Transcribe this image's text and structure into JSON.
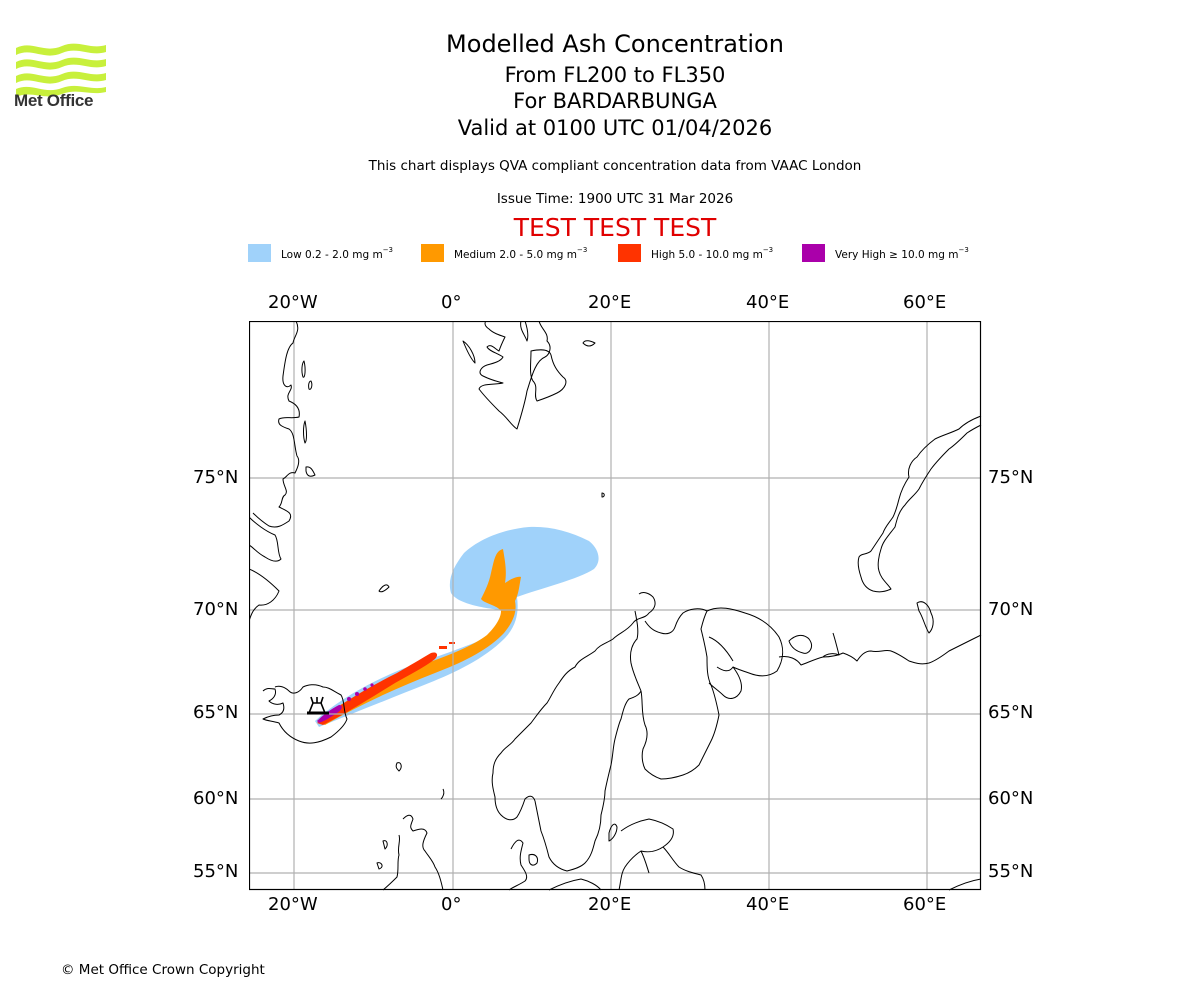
{
  "header": {
    "logo_name": "Met Office",
    "title": "Modelled Ash Concentration",
    "flight_levels": "From FL200 to FL350",
    "volcano": "For BARDARBUNGA",
    "valid_time": "Valid at 0100 UTC 01/04/2026",
    "description": "This chart displays QVA compliant concentration data from VAAC London",
    "issue_time": "Issue Time: 1900 UTC 31 Mar 2026",
    "test_banner": "TEST TEST TEST"
  },
  "legend": [
    {
      "label": "Low 0.2 - 2.0 mg m",
      "unit_exp": "−3",
      "color": "#a0d2fa"
    },
    {
      "label": "Medium 2.0 - 5.0 mg m",
      "unit_exp": "−3",
      "color": "#ff9900"
    },
    {
      "label": "High 5.0 - 10.0 mg m",
      "unit_exp": "−3",
      "color": "#ff3300"
    },
    {
      "label": "Very High  ≥  10.0 mg m",
      "unit_exp": "−3",
      "color": "#aa00aa"
    }
  ],
  "axes": {
    "longitude_ticks": [
      "20°W",
      "0°",
      "20°E",
      "40°E",
      "60°E"
    ],
    "latitude_ticks": [
      "75°N",
      "70°N",
      "65°N",
      "60°N",
      "55°N"
    ]
  },
  "map": {
    "region": "North Atlantic / Scandinavia",
    "volcano_marker": "volcano-icon",
    "gridline_color": "#b0b0b0",
    "coastline_color": "#000000"
  },
  "footer": {
    "copyright": "© Met Office Crown Copyright"
  }
}
